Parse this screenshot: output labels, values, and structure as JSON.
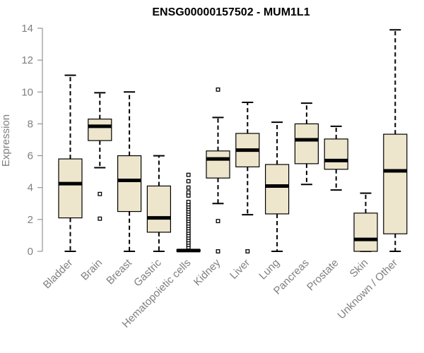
{
  "chart_data": {
    "type": "boxplot",
    "title": "ENSG00000157502 - MUM1L1",
    "xlabel": "",
    "ylabel": "Expression",
    "ylim": [
      0,
      14
    ],
    "yticks": [
      0,
      2,
      4,
      6,
      8,
      10,
      12,
      14
    ],
    "grid": false,
    "colors": {
      "box_fill": "#ede6cc",
      "box_stroke": "#000000",
      "median": "#000000",
      "axis": "#7f7f7f",
      "tick_label": "#7f7f7f",
      "title": "#000000"
    },
    "categories": [
      "Bladder",
      "Brain",
      "Breast",
      "Gastric",
      "Hematopoietic cells",
      "Kidney",
      "Liver",
      "Lung",
      "Pancreas",
      "Prostate",
      "Skin",
      "Unknown / Other"
    ],
    "boxes": [
      {
        "category": "Bladder",
        "whisker_low": 0,
        "q1": 2.1,
        "median": 4.25,
        "q3": 5.8,
        "whisker_high": 11.05,
        "outliers": []
      },
      {
        "category": "Brain",
        "whisker_low": 5.25,
        "q1": 6.95,
        "median": 7.85,
        "q3": 8.3,
        "whisker_high": 9.95,
        "outliers": [
          3.6,
          2.05
        ]
      },
      {
        "category": "Breast",
        "whisker_low": 0,
        "q1": 2.5,
        "median": 4.45,
        "q3": 6.0,
        "whisker_high": 10.0,
        "outliers": []
      },
      {
        "category": "Gastric",
        "whisker_low": 0,
        "q1": 1.2,
        "median": 2.1,
        "q3": 4.1,
        "whisker_high": 6.0,
        "outliers": []
      },
      {
        "category": "Hematopoietic cells",
        "whisker_low": 0,
        "q1": 0,
        "median": 0.05,
        "q3": 0.1,
        "whisker_high": 0.1,
        "outliers": [
          0.25,
          0.4,
          0.55,
          0.7,
          0.85,
          1.0,
          1.15,
          1.3,
          1.45,
          1.6,
          1.75,
          1.9,
          2.05,
          2.2,
          2.35,
          2.5,
          2.65,
          2.8,
          2.95,
          3.1,
          3.5,
          3.7,
          4.0,
          4.4,
          4.8
        ]
      },
      {
        "category": "Kidney",
        "whisker_low": 3.0,
        "q1": 4.6,
        "median": 5.8,
        "q3": 6.3,
        "whisker_high": 8.4,
        "outliers": [
          10.15,
          1.9,
          0
        ]
      },
      {
        "category": "Liver",
        "whisker_low": 2.3,
        "q1": 5.3,
        "median": 6.35,
        "q3": 7.4,
        "whisker_high": 9.35,
        "outliers": [
          0
        ]
      },
      {
        "category": "Lung",
        "whisker_low": 0,
        "q1": 2.35,
        "median": 4.1,
        "q3": 5.45,
        "whisker_high": 8.1,
        "outliers": []
      },
      {
        "category": "Pancreas",
        "whisker_low": 4.2,
        "q1": 5.5,
        "median": 7.0,
        "q3": 8.0,
        "whisker_high": 9.3,
        "outliers": []
      },
      {
        "category": "Prostate",
        "whisker_low": 3.85,
        "q1": 5.15,
        "median": 5.7,
        "q3": 7.05,
        "whisker_high": 7.85,
        "outliers": []
      },
      {
        "category": "Skin",
        "whisker_low": 0,
        "q1": 0,
        "median": 0.75,
        "q3": 2.4,
        "whisker_high": 3.65,
        "outliers": []
      },
      {
        "category": "Unknown / Other",
        "whisker_low": 0,
        "q1": 1.1,
        "median": 5.05,
        "q3": 7.35,
        "whisker_high": 13.9,
        "outliers": []
      }
    ]
  }
}
